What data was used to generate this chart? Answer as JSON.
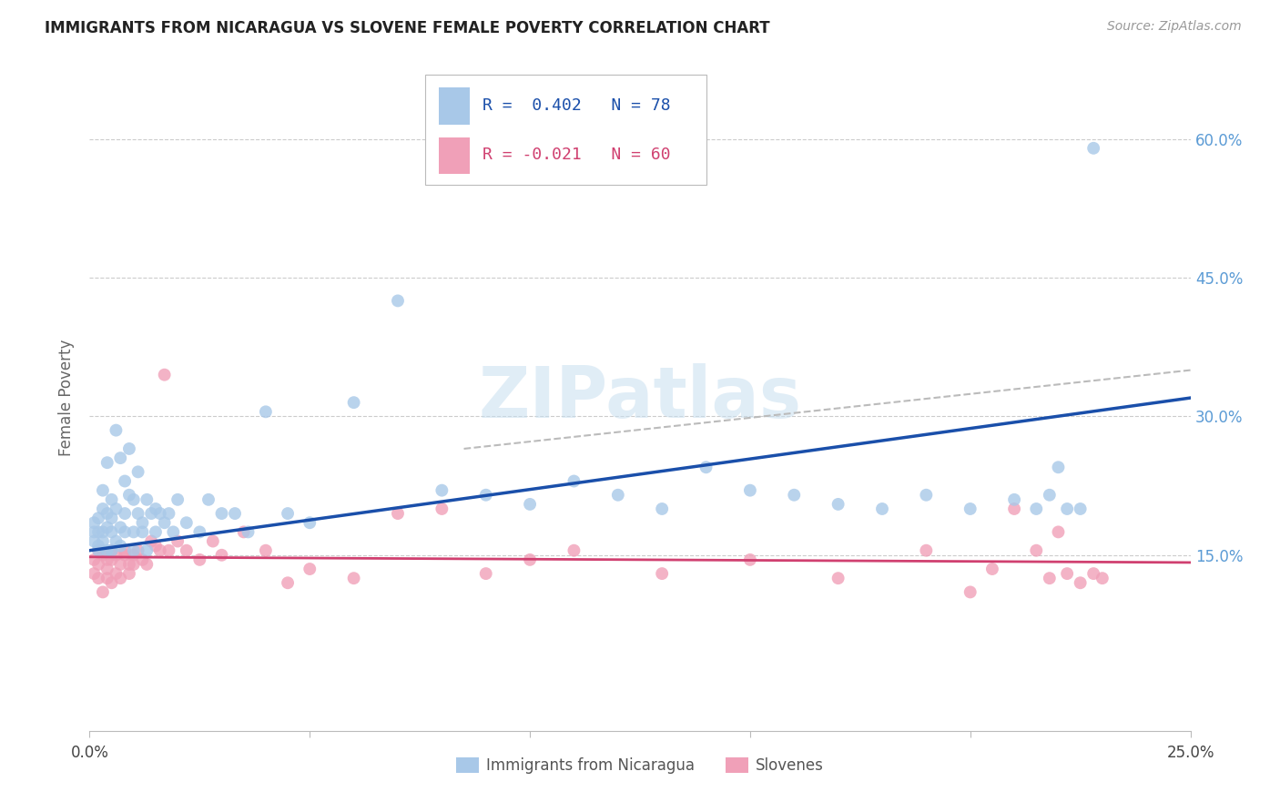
{
  "title": "IMMIGRANTS FROM NICARAGUA VS SLOVENE FEMALE POVERTY CORRELATION CHART",
  "source": "Source: ZipAtlas.com",
  "ylabel_label": "Female Poverty",
  "xlim": [
    0.0,
    0.25
  ],
  "ylim": [
    -0.04,
    0.68
  ],
  "ytick_positions": [
    0.15,
    0.3,
    0.45,
    0.6
  ],
  "ytick_labels": [
    "15.0%",
    "30.0%",
    "45.0%",
    "60.0%"
  ],
  "right_ytick_color": "#5b9bd5",
  "R_nicaragua": 0.402,
  "N_nicaragua": 78,
  "R_slovene": -0.021,
  "N_slovene": 60,
  "blue_color": "#a8c8e8",
  "pink_color": "#f0a0b8",
  "blue_line_color": "#1a4faa",
  "pink_line_color": "#d04070",
  "dash_line_color": "#bbbbbb",
  "watermark": "ZIPatlas",
  "nicaragua_x": [
    0.001,
    0.001,
    0.001,
    0.002,
    0.002,
    0.002,
    0.002,
    0.003,
    0.003,
    0.003,
    0.003,
    0.004,
    0.004,
    0.004,
    0.004,
    0.005,
    0.005,
    0.005,
    0.005,
    0.006,
    0.006,
    0.006,
    0.007,
    0.007,
    0.007,
    0.008,
    0.008,
    0.008,
    0.009,
    0.009,
    0.01,
    0.01,
    0.01,
    0.011,
    0.011,
    0.012,
    0.012,
    0.013,
    0.013,
    0.014,
    0.015,
    0.015,
    0.016,
    0.017,
    0.018,
    0.019,
    0.02,
    0.022,
    0.025,
    0.027,
    0.03,
    0.033,
    0.036,
    0.04,
    0.045,
    0.05,
    0.06,
    0.07,
    0.08,
    0.09,
    0.1,
    0.11,
    0.12,
    0.13,
    0.14,
    0.15,
    0.16,
    0.17,
    0.18,
    0.19,
    0.2,
    0.21,
    0.215,
    0.218,
    0.22,
    0.222,
    0.225,
    0.228
  ],
  "nicaragua_y": [
    0.175,
    0.185,
    0.165,
    0.16,
    0.19,
    0.175,
    0.155,
    0.22,
    0.165,
    0.175,
    0.2,
    0.155,
    0.195,
    0.25,
    0.18,
    0.155,
    0.21,
    0.175,
    0.19,
    0.165,
    0.285,
    0.2,
    0.255,
    0.18,
    0.16,
    0.195,
    0.23,
    0.175,
    0.265,
    0.215,
    0.155,
    0.21,
    0.175,
    0.195,
    0.24,
    0.185,
    0.175,
    0.155,
    0.21,
    0.195,
    0.2,
    0.175,
    0.195,
    0.185,
    0.195,
    0.175,
    0.21,
    0.185,
    0.175,
    0.21,
    0.195,
    0.195,
    0.175,
    0.305,
    0.195,
    0.185,
    0.315,
    0.425,
    0.22,
    0.215,
    0.205,
    0.23,
    0.215,
    0.2,
    0.245,
    0.22,
    0.215,
    0.205,
    0.2,
    0.215,
    0.2,
    0.21,
    0.2,
    0.215,
    0.245,
    0.2,
    0.2,
    0.59
  ],
  "slovene_x": [
    0.001,
    0.001,
    0.002,
    0.002,
    0.002,
    0.003,
    0.003,
    0.004,
    0.004,
    0.004,
    0.005,
    0.005,
    0.005,
    0.006,
    0.006,
    0.007,
    0.007,
    0.008,
    0.008,
    0.009,
    0.009,
    0.01,
    0.01,
    0.011,
    0.012,
    0.013,
    0.014,
    0.015,
    0.016,
    0.017,
    0.018,
    0.02,
    0.022,
    0.025,
    0.028,
    0.03,
    0.035,
    0.04,
    0.045,
    0.05,
    0.06,
    0.07,
    0.08,
    0.09,
    0.1,
    0.11,
    0.13,
    0.15,
    0.17,
    0.19,
    0.2,
    0.205,
    0.21,
    0.215,
    0.218,
    0.22,
    0.222,
    0.225,
    0.228,
    0.23
  ],
  "slovene_y": [
    0.13,
    0.145,
    0.125,
    0.14,
    0.155,
    0.11,
    0.15,
    0.135,
    0.145,
    0.125,
    0.12,
    0.145,
    0.155,
    0.13,
    0.15,
    0.14,
    0.125,
    0.15,
    0.155,
    0.14,
    0.13,
    0.15,
    0.14,
    0.155,
    0.145,
    0.14,
    0.165,
    0.16,
    0.155,
    0.345,
    0.155,
    0.165,
    0.155,
    0.145,
    0.165,
    0.15,
    0.175,
    0.155,
    0.12,
    0.135,
    0.125,
    0.195,
    0.2,
    0.13,
    0.145,
    0.155,
    0.13,
    0.145,
    0.125,
    0.155,
    0.11,
    0.135,
    0.2,
    0.155,
    0.125,
    0.175,
    0.13,
    0.12,
    0.13,
    0.125
  ],
  "nic_line_x": [
    0.0,
    0.25
  ],
  "nic_line_y": [
    0.155,
    0.32
  ],
  "slo_line_x": [
    0.0,
    0.25
  ],
  "slo_line_y": [
    0.148,
    0.142
  ],
  "dash_line_x": [
    0.085,
    0.25
  ],
  "dash_line_y": [
    0.265,
    0.35
  ]
}
